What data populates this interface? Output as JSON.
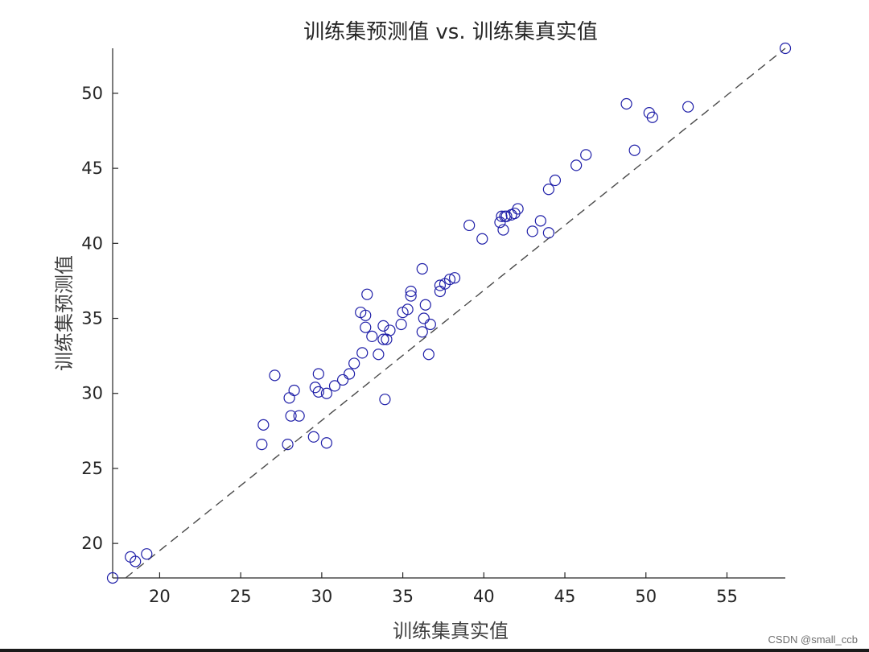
{
  "chart_data": {
    "type": "scatter",
    "title": "训练集预测值 vs. 训练集真实值",
    "xlabel": "训练集真实值",
    "ylabel": "训练集预测值",
    "xlim": [
      17.1,
      58.6
    ],
    "ylim": [
      17.7,
      53.0
    ],
    "xticks": [
      20,
      25,
      30,
      35,
      40,
      45,
      50,
      55
    ],
    "yticks": [
      20,
      25,
      30,
      35,
      40,
      45,
      50
    ],
    "grid": false,
    "marker_color": "#1f1fa8",
    "reference_line": {
      "style": "dashed",
      "color": "#4a4a4a",
      "from": [
        17.9,
        17.7
      ],
      "to": [
        58.6,
        53.0
      ]
    },
    "points": [
      [
        17.1,
        17.7
      ],
      [
        18.2,
        19.1
      ],
      [
        18.5,
        18.8
      ],
      [
        19.2,
        19.3
      ],
      [
        26.3,
        26.6
      ],
      [
        26.4,
        27.9
      ],
      [
        27.1,
        31.2
      ],
      [
        27.9,
        26.6
      ],
      [
        28.0,
        29.7
      ],
      [
        28.1,
        28.5
      ],
      [
        28.3,
        30.2
      ],
      [
        28.6,
        28.5
      ],
      [
        29.5,
        27.1
      ],
      [
        29.6,
        30.4
      ],
      [
        29.8,
        30.1
      ],
      [
        29.8,
        31.3
      ],
      [
        30.3,
        26.7
      ],
      [
        30.3,
        30.0
      ],
      [
        30.8,
        30.5
      ],
      [
        31.3,
        30.9
      ],
      [
        31.7,
        31.3
      ],
      [
        32.0,
        32.0
      ],
      [
        32.4,
        35.4
      ],
      [
        32.5,
        32.7
      ],
      [
        32.7,
        35.2
      ],
      [
        32.7,
        34.4
      ],
      [
        32.8,
        36.6
      ],
      [
        33.1,
        33.8
      ],
      [
        33.5,
        32.6
      ],
      [
        33.8,
        34.5
      ],
      [
        33.8,
        33.6
      ],
      [
        33.9,
        29.6
      ],
      [
        34.0,
        33.6
      ],
      [
        34.2,
        34.2
      ],
      [
        34.9,
        34.6
      ],
      [
        35.0,
        35.4
      ],
      [
        35.3,
        35.6
      ],
      [
        35.5,
        36.8
      ],
      [
        35.5,
        36.5
      ],
      [
        36.2,
        38.3
      ],
      [
        36.2,
        34.1
      ],
      [
        36.3,
        35.0
      ],
      [
        36.4,
        35.9
      ],
      [
        36.6,
        32.6
      ],
      [
        36.7,
        34.6
      ],
      [
        37.3,
        36.8
      ],
      [
        37.3,
        37.2
      ],
      [
        37.6,
        37.3
      ],
      [
        37.9,
        37.6
      ],
      [
        38.2,
        37.7
      ],
      [
        39.1,
        41.2
      ],
      [
        39.9,
        40.3
      ],
      [
        41.0,
        41.4
      ],
      [
        41.1,
        41.8
      ],
      [
        41.2,
        40.9
      ],
      [
        41.3,
        41.8
      ],
      [
        41.4,
        41.8
      ],
      [
        41.7,
        41.9
      ],
      [
        41.9,
        42.0
      ],
      [
        42.1,
        42.3
      ],
      [
        43.0,
        40.8
      ],
      [
        43.5,
        41.5
      ],
      [
        44.0,
        40.7
      ],
      [
        44.0,
        43.6
      ],
      [
        44.4,
        44.2
      ],
      [
        45.7,
        45.2
      ],
      [
        46.3,
        45.9
      ],
      [
        48.8,
        49.3
      ],
      [
        49.3,
        46.2
      ],
      [
        50.2,
        48.7
      ],
      [
        50.4,
        48.4
      ],
      [
        52.6,
        49.1
      ],
      [
        58.6,
        53.0
      ]
    ]
  },
  "watermark": "CSDN @small_ccb"
}
